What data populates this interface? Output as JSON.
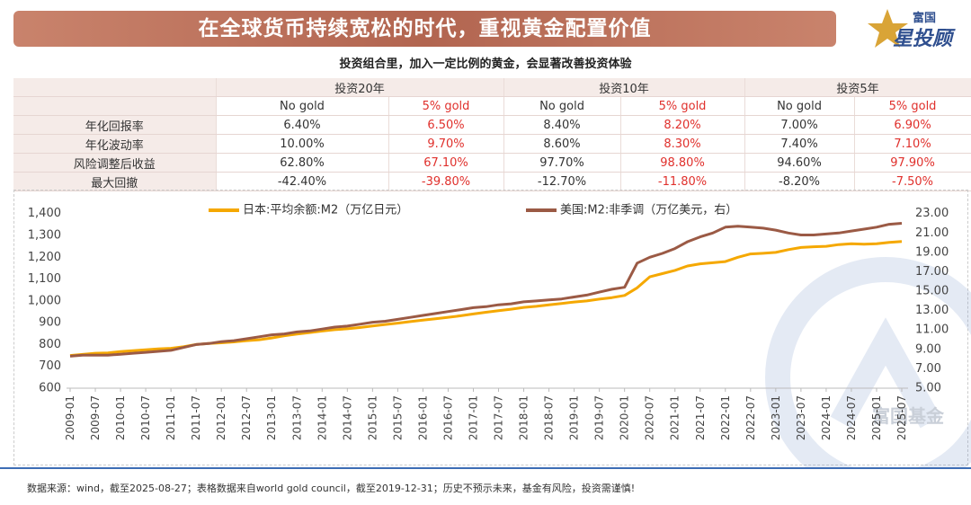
{
  "header": {
    "title": "在全球货币持续宽松的时代，重视黄金配置价值",
    "subtitle": "投资组合里，加入一定比例的黄金，会显著改善投资体验"
  },
  "logo": {
    "brand": "富国",
    "product": "星投顾"
  },
  "watermark": "富国基金",
  "table": {
    "groups": [
      "投资20年",
      "投资10年",
      "投资5年"
    ],
    "subheaders": [
      "No gold",
      "5% gold",
      "No gold",
      "5% gold",
      "No gold",
      "5% gold"
    ],
    "rows": [
      [
        "年化回报率",
        "6.40%",
        "6.50%",
        "8.40%",
        "8.20%",
        "7.00%",
        "6.90%"
      ],
      [
        "年化波动率",
        "10.00%",
        "9.70%",
        "8.60%",
        "8.30%",
        "7.40%",
        "7.10%"
      ],
      [
        "风险调整后收益",
        "62.80%",
        "67.10%",
        "97.70%",
        "98.80%",
        "94.60%",
        "97.90%"
      ],
      [
        "最大回撤",
        "-42.40%",
        "-39.80%",
        "-12.70%",
        "-11.80%",
        "-8.20%",
        "-7.50%"
      ]
    ]
  },
  "chart_data": {
    "type": "line",
    "x": [
      "2009-01",
      null,
      "2009-07",
      null,
      "2010-01",
      null,
      "2010-07",
      null,
      "2011-01",
      null,
      "2011-07",
      null,
      "2012-01",
      null,
      "2012-07",
      null,
      "2013-01",
      null,
      "2013-07",
      null,
      "2014-01",
      null,
      "2014-07",
      null,
      "2015-01",
      null,
      "2015-07",
      null,
      "2016-01",
      null,
      "2016-07",
      null,
      "2017-01",
      null,
      "2017-07",
      null,
      "2018-01",
      null,
      "2018-07",
      null,
      "2019-01",
      null,
      "2019-07",
      null,
      "2020-01",
      null,
      "2020-07",
      null,
      "2021-01",
      null,
      "2021-07",
      null,
      "2022-01",
      null,
      "2022-07",
      null,
      "2023-01",
      null,
      "2023-07",
      null,
      "2024-01",
      null,
      "2024-07",
      null,
      "2025-01",
      null,
      "2025-07"
    ],
    "series": [
      {
        "name": "日本:平均余额:M2（万亿日元）",
        "color": "#f5a800",
        "values": [
          750,
          755,
          760,
          762,
          768,
          772,
          776,
          780,
          783,
          790,
          800,
          805,
          808,
          812,
          818,
          822,
          830,
          840,
          848,
          855,
          862,
          868,
          872,
          878,
          885,
          892,
          898,
          905,
          912,
          918,
          925,
          932,
          940,
          948,
          955,
          962,
          970,
          975,
          982,
          988,
          995,
          1000,
          1008,
          1015,
          1025,
          1060,
          1110,
          1125,
          1140,
          1160,
          1170,
          1175,
          1180,
          1200,
          1215,
          1218,
          1222,
          1235,
          1245,
          1248,
          1250,
          1258,
          1262,
          1260,
          1262,
          1268,
          1272
        ]
      },
      {
        "name": "美国:M2:非季调（万亿美元，右）",
        "color": "#9b5a45",
        "axis": "y2",
        "values": [
          8.3,
          8.4,
          8.4,
          8.4,
          8.5,
          8.6,
          8.7,
          8.8,
          8.9,
          9.2,
          9.5,
          9.6,
          9.8,
          9.9,
          10.1,
          10.3,
          10.5,
          10.6,
          10.8,
          10.9,
          11.1,
          11.3,
          11.4,
          11.6,
          11.8,
          11.9,
          12.1,
          12.3,
          12.5,
          12.7,
          12.9,
          13.1,
          13.3,
          13.4,
          13.6,
          13.7,
          13.9,
          14.0,
          14.1,
          14.2,
          14.4,
          14.6,
          14.9,
          15.2,
          15.4,
          17.9,
          18.5,
          18.9,
          19.4,
          20.1,
          20.6,
          21.0,
          21.6,
          21.7,
          21.6,
          21.5,
          21.3,
          21.0,
          20.8,
          20.8,
          20.9,
          21.0,
          21.2,
          21.4,
          21.6,
          21.9,
          22.0
        ]
      }
    ],
    "ylim": [
      600,
      1440
    ],
    "yticks": [
      600,
      700,
      800,
      900,
      {
        "value": 1000,
        "label": "1,000"
      },
      {
        "value": 1100,
        "label": "1,100"
      },
      {
        "value": 1200,
        "label": "1,200"
      },
      {
        "value": 1300,
        "label": "1,300"
      },
      {
        "value": 1400,
        "label": "1,400"
      }
    ],
    "y2lim": [
      5,
      23.9
    ],
    "y2ticks": [
      {
        "value": 5,
        "label": "5.00"
      },
      {
        "value": 7,
        "label": "7.00"
      },
      {
        "value": 9,
        "label": "9.00"
      },
      {
        "value": 11,
        "label": "11.00"
      },
      {
        "value": 13,
        "label": "13.00"
      },
      {
        "value": 15,
        "label": "15.00"
      },
      {
        "value": 17,
        "label": "17.00"
      },
      {
        "value": 19,
        "label": "19.00"
      },
      {
        "value": 21,
        "label": "21.00"
      },
      {
        "value": 23,
        "label": "23.00"
      }
    ],
    "grid": false,
    "legend": "top"
  },
  "footer": {
    "note": "数据来源：wind，截至2025-08-27；表格数据来自world gold council，截至2019-12-31；历史不预示未来，基金有风险，投资需谨慎!"
  }
}
